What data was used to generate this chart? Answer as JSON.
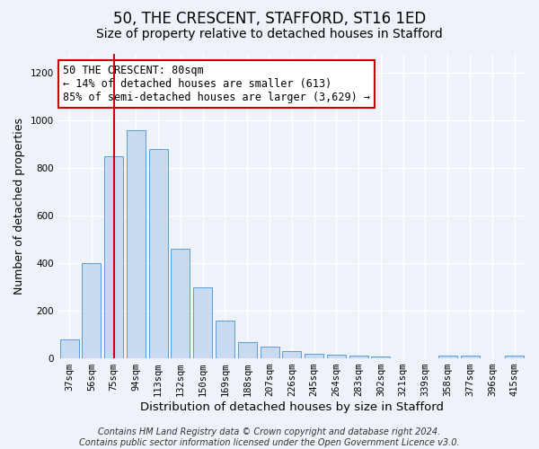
{
  "title": "50, THE CRESCENT, STAFFORD, ST16 1ED",
  "subtitle": "Size of property relative to detached houses in Stafford",
  "xlabel": "Distribution of detached houses by size in Stafford",
  "ylabel": "Number of detached properties",
  "categories": [
    "37sqm",
    "56sqm",
    "75sqm",
    "94sqm",
    "113sqm",
    "132sqm",
    "150sqm",
    "169sqm",
    "188sqm",
    "207sqm",
    "226sqm",
    "245sqm",
    "264sqm",
    "283sqm",
    "302sqm",
    "321sqm",
    "339sqm",
    "358sqm",
    "377sqm",
    "396sqm",
    "415sqm"
  ],
  "values": [
    80,
    400,
    850,
    960,
    880,
    460,
    300,
    160,
    70,
    50,
    30,
    20,
    15,
    10,
    8,
    0,
    0,
    12,
    10,
    0,
    12
  ],
  "bar_color": "#c8daf0",
  "bar_edge_color": "#5b9bd5",
  "background_color": "#eef2f9",
  "grid_color": "#ffffff",
  "annotation_line1": "50 THE CRESCENT: 80sqm",
  "annotation_line2": "← 14% of detached houses are smaller (613)",
  "annotation_line3": "85% of semi-detached houses are larger (3,629) →",
  "annotation_box_color": "#ffffff",
  "annotation_box_edge_color": "#cc0000",
  "vline_x_index": 2,
  "vline_color": "#cc0000",
  "ylim": [
    0,
    1280
  ],
  "yticks": [
    0,
    200,
    400,
    600,
    800,
    1000,
    1200
  ],
  "footnote": "Contains HM Land Registry data © Crown copyright and database right 2024.\nContains public sector information licensed under the Open Government Licence v3.0.",
  "title_fontsize": 12,
  "subtitle_fontsize": 10,
  "xlabel_fontsize": 9.5,
  "ylabel_fontsize": 9,
  "tick_fontsize": 7.5,
  "annotation_fontsize": 8.5,
  "footnote_fontsize": 7
}
